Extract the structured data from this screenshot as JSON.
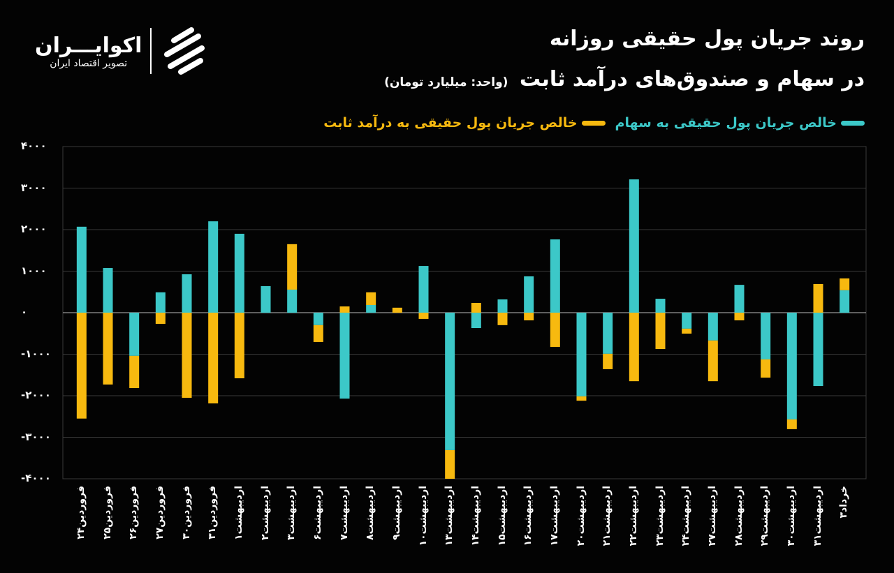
{
  "header": {
    "title_line1": "روند جریان پول حقیقی روزانه",
    "title_line2": "در سهام و صندوق‌های درآمد ثابت",
    "unit": "(واحد: میلیارد تومان)"
  },
  "logo": {
    "brand": "اکوایـــران",
    "tagline": "تصویر اقتصاد ایران"
  },
  "colors": {
    "stocks": "#3cc8c8",
    "fixed_income": "#f7b90f",
    "background": "#030303",
    "grid": "#3a3a3a"
  },
  "chart_data": {
    "type": "bar",
    "stacked": true,
    "ylim": [
      -4000,
      4000
    ],
    "yticks": [
      "۴۰۰۰",
      "۳۰۰۰",
      "۲۰۰۰",
      "۱۰۰۰",
      "۰",
      "-۱۰۰۰",
      "-۲۰۰۰",
      "-۳۰۰۰",
      "-۴۰۰۰"
    ],
    "ytick_values": [
      4000,
      3000,
      2000,
      1000,
      0,
      -1000,
      -2000,
      -3000,
      -4000
    ],
    "legend_position": "top-right",
    "categories": [
      "فروردین۲۴",
      "فروردین۲۵",
      "فروردین۲۶",
      "فروردین۲۷",
      "فروردین۳۰",
      "فروردین۳۱",
      "اردیبهشت۱",
      "اردیبهشت۲",
      "اردیبهشت۳",
      "اردیبهشت۶",
      "اردیبهشت۷",
      "اردیبهشت۸",
      "اردیبهشت۹",
      "اردیبهشت۱۰",
      "اردیبهشت۱۳",
      "اردیبهشت۱۴",
      "اردیبهشت۱۵",
      "اردیبهشت۱۶",
      "اردیبهشت۱۷",
      "اردیبهشت۲۰",
      "اردیبهشت۲۱",
      "اردیبهشت۲۲",
      "اردیبهشت۲۳",
      "اردیبهشت۲۴",
      "اردیبهشت۲۷",
      "اردیبهشت۲۸",
      "اردیبهشت۲۹",
      "اردیبهشت۳۰",
      "اردیبهشت۳۱",
      "خرداد۳"
    ],
    "series": [
      {
        "name": "خالص جریان پول حقیقی به سهام",
        "values": [
          2070,
          1075,
          -1040,
          490,
          925,
          2200,
          1900,
          640,
          555,
          -300,
          -2070,
          185,
          0,
          1125,
          -3310,
          -370,
          320,
          875,
          1765,
          -2015,
          -990,
          3210,
          335,
          -385,
          -670,
          670,
          -1125,
          -2570,
          -1765,
          540
        ]
      },
      {
        "name": "خالص جریان پول حقیقی به درآمد ثابت",
        "values": [
          -2550,
          -1730,
          -775,
          -270,
          -2050,
          -2185,
          -1580,
          0,
          1095,
          -405,
          150,
          305,
          120,
          -150,
          -690,
          235,
          -300,
          -185,
          -825,
          -105,
          -370,
          -1650,
          -875,
          -120,
          -980,
          -185,
          -440,
          -235,
          690,
          285
        ]
      }
    ]
  }
}
